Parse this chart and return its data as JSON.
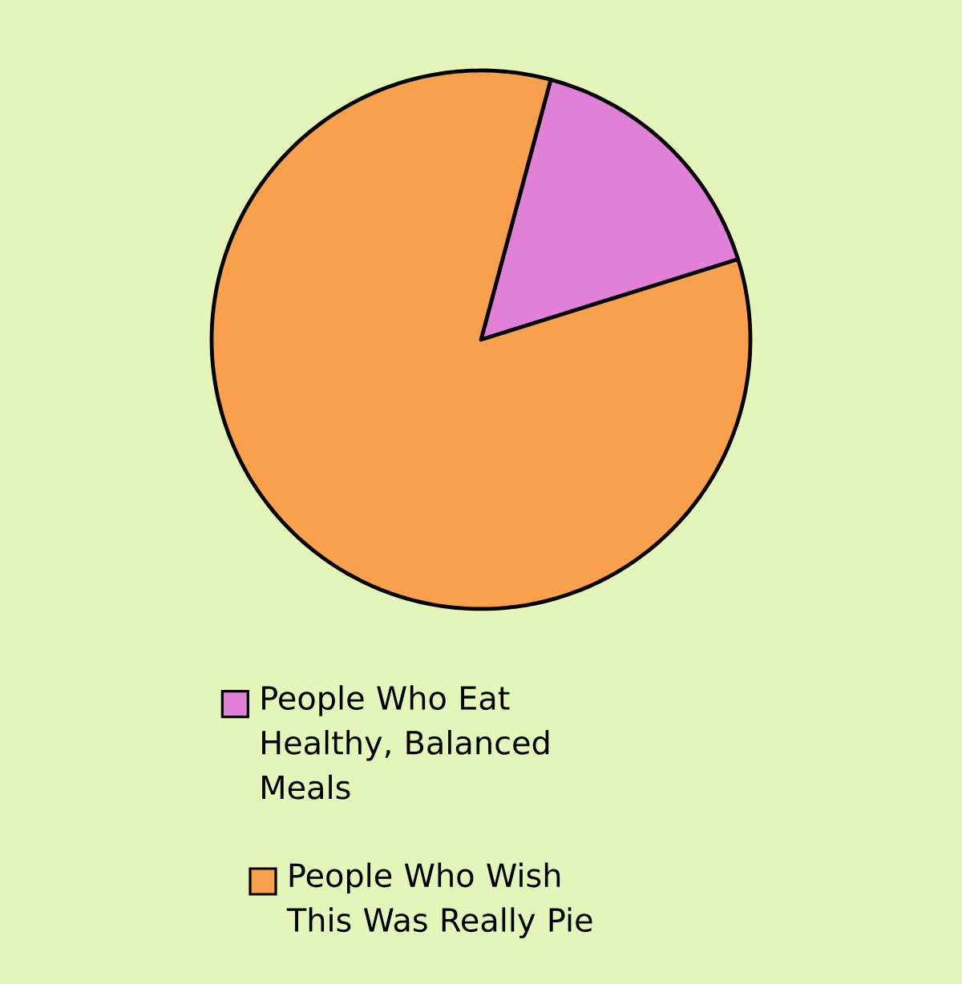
{
  "chart_data": {
    "type": "pie",
    "categories": [
      "People Who Eat Healthy, Balanced Meals",
      "People Who Wish This Was Really Pie"
    ],
    "values": [
      16,
      84
    ],
    "colors": [
      "#e080d8",
      "#f9a04c"
    ],
    "legend": "bottom"
  }
}
